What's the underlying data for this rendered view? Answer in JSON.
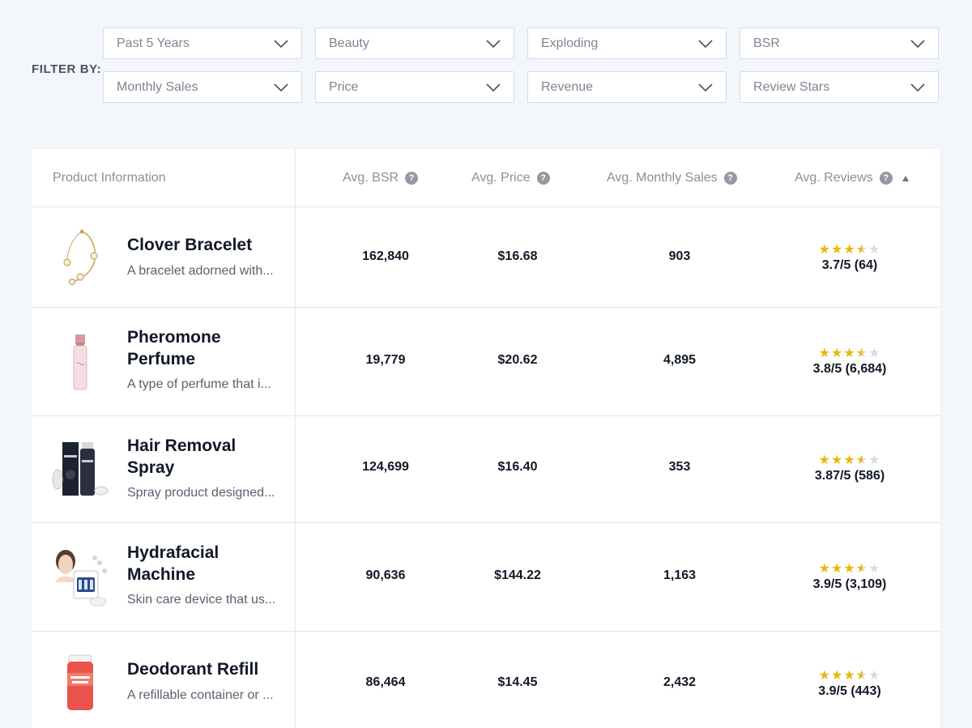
{
  "filters": {
    "label": "FILTER BY:",
    "row1": [
      "Past 5 Years",
      "Beauty",
      "Exploding",
      "BSR"
    ],
    "row2": [
      "Monthly Sales",
      "Price",
      "Revenue",
      "Review Stars"
    ]
  },
  "table": {
    "headers": {
      "product": "Product Information",
      "bsr": "Avg. BSR",
      "price": "Avg. Price",
      "sales": "Avg. Monthly Sales",
      "reviews": "Avg. Reviews"
    },
    "rows": [
      {
        "name": "Clover Bracelet",
        "desc": "A bracelet adorned with...",
        "bsr": "162,840",
        "price": "$16.68",
        "sales": "903",
        "rating_text": "3.7/5 (64)",
        "rating": 3.7,
        "icon": "bracelet-image"
      },
      {
        "name": "Pheromone Perfume",
        "desc": "A type of perfume that i...",
        "bsr": "19,779",
        "price": "$20.62",
        "sales": "4,895",
        "rating_text": "3.8/5 (6,684)",
        "rating": 3.8,
        "icon": "perfume-image"
      },
      {
        "name": "Hair Removal Spray",
        "desc": "Spray product designed...",
        "bsr": "124,699",
        "price": "$16.40",
        "sales": "353",
        "rating_text": "3.87/5 (586)",
        "rating": 3.87,
        "icon": "spray-image"
      },
      {
        "name": "Hydrafacial Machine",
        "desc": "Skin care device that us...",
        "bsr": "90,636",
        "price": "$144.22",
        "sales": "1,163",
        "rating_text": "3.9/5 (3,109)",
        "rating": 3.9,
        "icon": "machine-image"
      },
      {
        "name": "Deodorant Refill",
        "desc": "A refillable container or ...",
        "bsr": "86,464",
        "price": "$14.45",
        "sales": "2,432",
        "rating_text": "3.9/5 (443)",
        "rating": 3.9,
        "icon": "deodorant-image"
      }
    ]
  },
  "colors": {
    "background": "#f3f7fc",
    "star": "#eab707",
    "star_empty": "#d8dbe0"
  }
}
